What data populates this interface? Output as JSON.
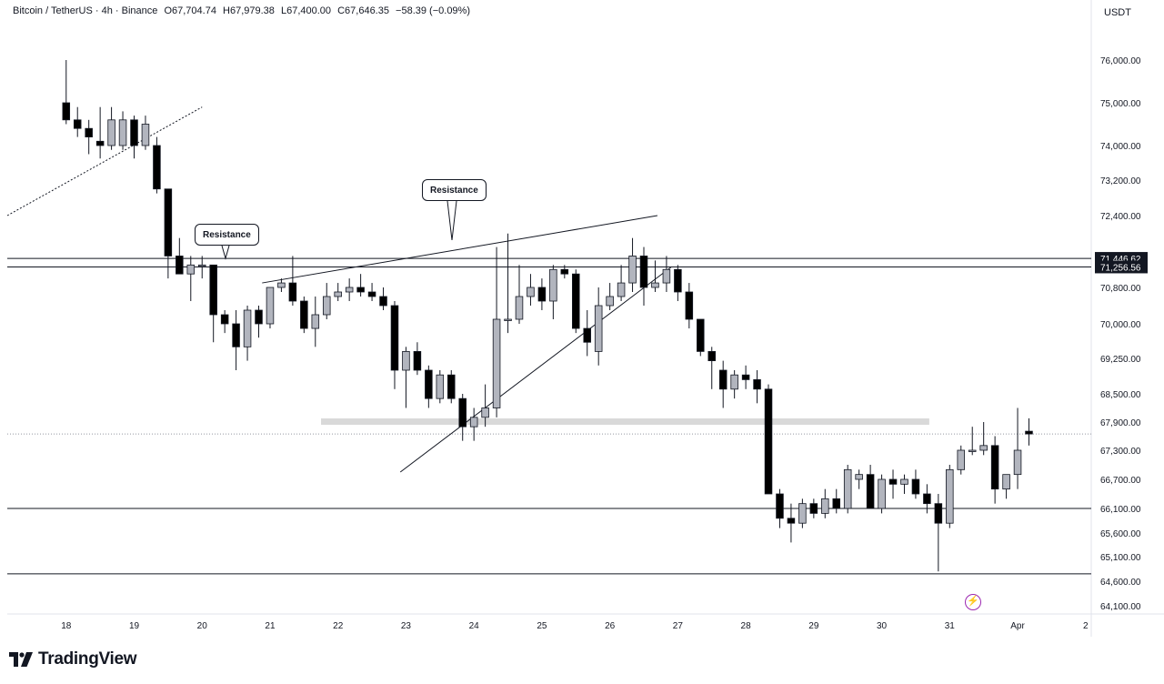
{
  "header": {
    "symbol": "Bitcoin / TetherUS · 4h · Binance",
    "open": "O67,704.74",
    "high": "H67,979.38",
    "low": "L67,400.00",
    "close": "C67,646.35",
    "change": "−58.39 (−0.09%)"
  },
  "price_axis": {
    "currency": "USDT"
  },
  "annotations": {
    "callout_left": "Resistance",
    "callout_right": "Resistance"
  },
  "footer": {
    "brand": "TradingView"
  },
  "icons": {
    "bolt": "lightning-bolt-icon",
    "logo": "tradingview-logo-icon"
  },
  "colors": {
    "up": "#b2b5be",
    "down": "#000000",
    "grid_zone": "#d9d9d9",
    "callout_border": "#131722",
    "bolt": "#9c27b0"
  },
  "chart_data": {
    "type": "candlestick",
    "title": "Bitcoin / TetherUS · 4h · Binance",
    "ylim": [
      64000,
      76800
    ],
    "y_ticks": [
      76000,
      75000,
      74000,
      73200,
      72400,
      71446.62,
      71256.56,
      70800,
      70000,
      69250,
      68500,
      67900,
      67300,
      66700,
      66100,
      65600,
      65100,
      64600,
      64100
    ],
    "y_tick_labels": [
      "76,000.00",
      "75,000.00",
      "74,000.00",
      "73,200.00",
      "72,400.00",
      "71,446.62",
      "71,256.56",
      "70,800.00",
      "70,000.00",
      "69,250.00",
      "68,500.00",
      "67,900.00",
      "67,300.00",
      "66,700.00",
      "66,100.00",
      "65,600.00",
      "65,100.00",
      "64,600.00",
      "64,100.00"
    ],
    "highlighted_prices": [
      "71,446.62",
      "71,256.56"
    ],
    "x_ticks": [
      "18",
      "19",
      "20",
      "21",
      "22",
      "23",
      "24",
      "25",
      "26",
      "27",
      "28",
      "29",
      "30",
      "31",
      "Apr",
      "2"
    ],
    "x_tick_positions": [
      0,
      6,
      12,
      18,
      24,
      30,
      36,
      42,
      48,
      54,
      60,
      66,
      72,
      78,
      84,
      90
    ],
    "x_start": -5.2,
    "x_end": 90.5,
    "candles": [
      {
        "o": 75000,
        "h": 76000,
        "l": 74500,
        "c": 74600
      },
      {
        "o": 74600,
        "h": 74900,
        "l": 74200,
        "c": 74400
      },
      {
        "o": 74400,
        "h": 74600,
        "l": 73800,
        "c": 74200
      },
      {
        "o": 74100,
        "h": 74900,
        "l": 73700,
        "c": 74000
      },
      {
        "o": 74000,
        "h": 74900,
        "l": 73900,
        "c": 74600
      },
      {
        "o": 74000,
        "h": 74800,
        "l": 73900,
        "c": 74600
      },
      {
        "o": 74600,
        "h": 74700,
        "l": 73700,
        "c": 74000
      },
      {
        "o": 74000,
        "h": 74700,
        "l": 73900,
        "c": 74500
      },
      {
        "o": 74000,
        "h": 74200,
        "l": 72900,
        "c": 73000
      },
      {
        "o": 73000,
        "h": 73000,
        "l": 71000,
        "c": 71500
      },
      {
        "o": 71500,
        "h": 71900,
        "l": 71100,
        "c": 71100
      },
      {
        "o": 71100,
        "h": 71500,
        "l": 70500,
        "c": 71300
      },
      {
        "o": 71300,
        "h": 71500,
        "l": 71000,
        "c": 71300
      },
      {
        "o": 71300,
        "h": 71300,
        "l": 69600,
        "c": 70200
      },
      {
        "o": 70200,
        "h": 70300,
        "l": 69800,
        "c": 70000
      },
      {
        "o": 70000,
        "h": 70300,
        "l": 69000,
        "c": 69500
      },
      {
        "o": 69500,
        "h": 70400,
        "l": 69200,
        "c": 70300
      },
      {
        "o": 70300,
        "h": 70400,
        "l": 69700,
        "c": 70000
      },
      {
        "o": 70000,
        "h": 70800,
        "l": 69900,
        "c": 70800
      },
      {
        "o": 70800,
        "h": 71000,
        "l": 70700,
        "c": 70900
      },
      {
        "o": 70900,
        "h": 71500,
        "l": 70400,
        "c": 70500
      },
      {
        "o": 70500,
        "h": 70600,
        "l": 69800,
        "c": 69900
      },
      {
        "o": 69900,
        "h": 70600,
        "l": 69500,
        "c": 70200
      },
      {
        "o": 70200,
        "h": 70900,
        "l": 70100,
        "c": 70600
      },
      {
        "o": 70600,
        "h": 70900,
        "l": 70500,
        "c": 70700
      },
      {
        "o": 70700,
        "h": 71000,
        "l": 70500,
        "c": 70800
      },
      {
        "o": 70800,
        "h": 71100,
        "l": 70600,
        "c": 70700
      },
      {
        "o": 70700,
        "h": 70900,
        "l": 70500,
        "c": 70600
      },
      {
        "o": 70600,
        "h": 70800,
        "l": 70300,
        "c": 70400
      },
      {
        "o": 70400,
        "h": 70500,
        "l": 68600,
        "c": 69000
      },
      {
        "o": 69000,
        "h": 69500,
        "l": 68200,
        "c": 69400
      },
      {
        "o": 69400,
        "h": 69600,
        "l": 68900,
        "c": 69000
      },
      {
        "o": 69000,
        "h": 69100,
        "l": 68200,
        "c": 68400
      },
      {
        "o": 68400,
        "h": 69000,
        "l": 68300,
        "c": 68900
      },
      {
        "o": 68900,
        "h": 69000,
        "l": 68300,
        "c": 68400
      },
      {
        "o": 68400,
        "h": 68500,
        "l": 67500,
        "c": 67800
      },
      {
        "o": 67800,
        "h": 68200,
        "l": 67500,
        "c": 68000
      },
      {
        "o": 68000,
        "h": 68700,
        "l": 67800,
        "c": 68200
      },
      {
        "o": 68200,
        "h": 71700,
        "l": 68000,
        "c": 70100
      },
      {
        "o": 70100,
        "h": 72000,
        "l": 69800,
        "c": 70100
      },
      {
        "o": 70100,
        "h": 71300,
        "l": 70000,
        "c": 70600
      },
      {
        "o": 70600,
        "h": 71100,
        "l": 70400,
        "c": 70800
      },
      {
        "o": 70800,
        "h": 71000,
        "l": 70300,
        "c": 70500
      },
      {
        "o": 70500,
        "h": 71300,
        "l": 70100,
        "c": 71200
      },
      {
        "o": 71200,
        "h": 71300,
        "l": 71000,
        "c": 71100
      },
      {
        "o": 71100,
        "h": 71200,
        "l": 69800,
        "c": 69900
      },
      {
        "o": 69900,
        "h": 70300,
        "l": 69300,
        "c": 69600
      },
      {
        "o": 69400,
        "h": 70800,
        "l": 69100,
        "c": 70400
      },
      {
        "o": 70400,
        "h": 70900,
        "l": 70300,
        "c": 70600
      },
      {
        "o": 70600,
        "h": 71300,
        "l": 70500,
        "c": 70900
      },
      {
        "o": 70900,
        "h": 71900,
        "l": 70700,
        "c": 71500
      },
      {
        "o": 71500,
        "h": 71700,
        "l": 70400,
        "c": 70800
      },
      {
        "o": 70800,
        "h": 71400,
        "l": 70700,
        "c": 70900
      },
      {
        "o": 70900,
        "h": 71500,
        "l": 70700,
        "c": 71200
      },
      {
        "o": 71200,
        "h": 71300,
        "l": 70500,
        "c": 70700
      },
      {
        "o": 70700,
        "h": 70900,
        "l": 69900,
        "c": 70100
      },
      {
        "o": 70100,
        "h": 70100,
        "l": 69300,
        "c": 69400
      },
      {
        "o": 69400,
        "h": 69500,
        "l": 68600,
        "c": 69200
      },
      {
        "o": 69000,
        "h": 69200,
        "l": 68200,
        "c": 68600
      },
      {
        "o": 68600,
        "h": 69000,
        "l": 68400,
        "c": 68900
      },
      {
        "o": 68900,
        "h": 69100,
        "l": 68600,
        "c": 68800
      },
      {
        "o": 68800,
        "h": 69000,
        "l": 68300,
        "c": 68600
      },
      {
        "o": 68600,
        "h": 68700,
        "l": 66400,
        "c": 66400
      },
      {
        "o": 66400,
        "h": 66500,
        "l": 65700,
        "c": 65900
      },
      {
        "o": 65900,
        "h": 66200,
        "l": 65400,
        "c": 65800
      },
      {
        "o": 65800,
        "h": 66300,
        "l": 65700,
        "c": 66200
      },
      {
        "o": 66200,
        "h": 66300,
        "l": 65900,
        "c": 66000
      },
      {
        "o": 66000,
        "h": 66500,
        "l": 65900,
        "c": 66300
      },
      {
        "o": 66300,
        "h": 66500,
        "l": 66000,
        "c": 66100
      },
      {
        "o": 66100,
        "h": 67000,
        "l": 66000,
        "c": 66900
      },
      {
        "o": 66700,
        "h": 66900,
        "l": 66500,
        "c": 66800
      },
      {
        "o": 66800,
        "h": 67000,
        "l": 66100,
        "c": 66100
      },
      {
        "o": 66100,
        "h": 66800,
        "l": 66000,
        "c": 66700
      },
      {
        "o": 66700,
        "h": 66900,
        "l": 66300,
        "c": 66600
      },
      {
        "o": 66600,
        "h": 66800,
        "l": 66400,
        "c": 66700
      },
      {
        "o": 66700,
        "h": 66900,
        "l": 66300,
        "c": 66400
      },
      {
        "o": 66400,
        "h": 66600,
        "l": 66000,
        "c": 66200
      },
      {
        "o": 66200,
        "h": 66400,
        "l": 64800,
        "c": 65800
      },
      {
        "o": 65800,
        "h": 67000,
        "l": 65700,
        "c": 66900
      },
      {
        "o": 66900,
        "h": 67400,
        "l": 66800,
        "c": 67300
      },
      {
        "o": 67300,
        "h": 67800,
        "l": 67200,
        "c": 67300
      },
      {
        "o": 67300,
        "h": 67900,
        "l": 67200,
        "c": 67400
      },
      {
        "o": 67400,
        "h": 67600,
        "l": 66200,
        "c": 66500
      },
      {
        "o": 66500,
        "h": 66800,
        "l": 66300,
        "c": 66800
      },
      {
        "o": 66800,
        "h": 68200,
        "l": 66500,
        "c": 67300
      },
      {
        "o": 67704.74,
        "h": 67979.38,
        "l": 67400,
        "c": 67646.35
      }
    ]
  }
}
